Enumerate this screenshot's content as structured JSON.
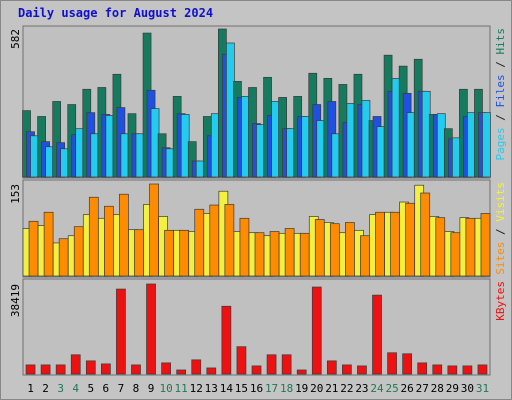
{
  "chart_data": {
    "type": "bar",
    "title": "Daily usage for August 2024",
    "categories": [
      "1",
      "2",
      "3",
      "4",
      "5",
      "6",
      "7",
      "8",
      "9",
      "10",
      "11",
      "12",
      "13",
      "14",
      "15",
      "16",
      "17",
      "18",
      "19",
      "20",
      "21",
      "22",
      "23",
      "24",
      "25",
      "26",
      "27",
      "28",
      "29",
      "30",
      "31"
    ],
    "category_colors": [
      "#000000",
      "#000000",
      "#227755",
      "#227755",
      "#000000",
      "#000000",
      "#000000",
      "#000000",
      "#000000",
      "#227755",
      "#227755",
      "#000000",
      "#000000",
      "#000000",
      "#000000",
      "#000000",
      "#227755",
      "#227755",
      "#000000",
      "#000000",
      "#000000",
      "#000000",
      "#000000",
      "#227755",
      "#227755",
      "#000000",
      "#000000",
      "#000000",
      "#000000",
      "#000000",
      "#227755"
    ],
    "legend_separator": " / ",
    "panels": [
      {
        "ylim": [
          0,
          582
        ],
        "yticks": [
          582
        ],
        "series": [
          {
            "name": "Pages",
            "color": "#22ccee",
            "values": [
              162,
              119,
              111,
              190,
              170,
              242,
              170,
              170,
              269,
              111,
              246,
              63,
              249,
              527,
              317,
              206,
              297,
              190,
              238,
              222,
              170,
              289,
              301,
              198,
              388,
              253,
              337,
              249,
              154,
              253,
              253
            ]
          },
          {
            "name": "Files",
            "color": "#2050e0",
            "values": [
              178,
              139,
              135,
              166,
              253,
              246,
              273,
              170,
              341,
              115,
              249,
              63,
              162,
              483,
              313,
              210,
              242,
              190,
              238,
              285,
              297,
              214,
              285,
              238,
              337,
              329,
              337,
              246,
              150,
              238,
              253
            ]
          },
          {
            "name": "Hits",
            "color": "#167a5e",
            "values": [
              261,
              238,
              297,
              285,
              345,
              352,
              404,
              249,
              566,
              170,
              317,
              139,
              238,
              582,
              376,
              352,
              392,
              313,
              317,
              408,
              388,
              364,
              404,
              222,
              479,
              436,
              463,
              246,
              190,
              345,
              345
            ]
          }
        ]
      },
      {
        "ylim": [
          0,
          153
        ],
        "yticks": [
          153
        ],
        "series": [
          {
            "name": "Sites",
            "color": "#ff8c00",
            "values": [
              91,
              106,
              62,
              82,
              131,
              116,
              136,
              77,
              153,
              76,
              76,
              111,
              118,
              119,
              96,
              72,
              74,
              79,
              71,
              94,
              87,
              89,
              67,
              106,
              106,
              121,
              138,
              97,
              72,
              96,
              104
            ]
          },
          {
            "name": "Visits",
            "color": "#f4f040",
            "values": [
              79,
              84,
              55,
              67,
              102,
              96,
              102,
              77,
              119,
              99,
              76,
              74,
              104,
              141,
              74,
              72,
              67,
              71,
              71,
              99,
              89,
              72,
              76,
              102,
              106,
              123,
              151,
              99,
              74,
              97,
              96
            ]
          }
        ]
      },
      {
        "ylim": [
          0,
          38419
        ],
        "yticks": [
          38419
        ],
        "series": [
          {
            "name": "KBytes",
            "color": "#ee1111",
            "values": [
              3885,
              3885,
              3885,
              8202,
              5612,
              4317,
              36263,
              3885,
              38419,
              4749,
              1727,
              6044,
              2590,
              28924,
              11656,
              3454,
              8202,
              8202,
              1727,
              37126,
              5612,
              3885,
              3454,
              33673,
              9066,
              8634,
              4749,
              3885,
              3454,
              3454,
              3885
            ]
          }
        ]
      }
    ]
  }
}
